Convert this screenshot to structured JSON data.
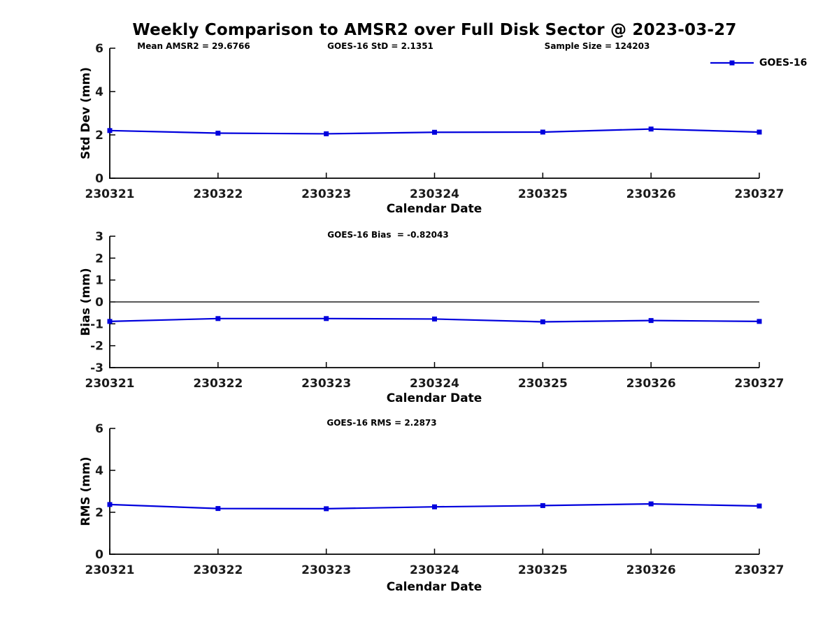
{
  "title": "Weekly Comparison to AMSR2 over Full Disk Sector @ 2023-03-27",
  "colors": {
    "line": "#0000dd",
    "marker": "#0000dd",
    "axis": "#000000",
    "zero_line": "#222222",
    "text": "#1a1a1a"
  },
  "chart_data": [
    {
      "type": "line",
      "title": "",
      "ylabel": "Std Dev (mm)",
      "xlabel": "Calendar Date",
      "ylim": [
        0,
        6
      ],
      "yticks": [
        0,
        2,
        4,
        6
      ],
      "categories": [
        "230321",
        "230322",
        "230323",
        "230324",
        "230325",
        "230326",
        "230327"
      ],
      "series": [
        {
          "name": "GOES-16",
          "values": [
            2.2,
            2.08,
            2.05,
            2.12,
            2.13,
            2.27,
            2.13
          ]
        }
      ],
      "annotations": [
        {
          "text": "Mean AMSR2 = 29.6766"
        },
        {
          "text": "GOES-16 StD = 2.1351"
        },
        {
          "text": "Sample Size = 124203"
        }
      ],
      "legend": {
        "label": "GOES-16",
        "position": "top-right"
      },
      "grid": false,
      "zero_line": false
    },
    {
      "type": "line",
      "title": "",
      "ylabel": "Bias (mm)",
      "xlabel": "Calendar Date",
      "ylim": [
        -3,
        3
      ],
      "yticks": [
        -3,
        -2,
        -1,
        0,
        1,
        2,
        3
      ],
      "categories": [
        "230321",
        "230322",
        "230323",
        "230324",
        "230325",
        "230326",
        "230327"
      ],
      "series": [
        {
          "name": "GOES-16",
          "values": [
            -0.89,
            -0.76,
            -0.76,
            -0.78,
            -0.91,
            -0.85,
            -0.89
          ]
        }
      ],
      "annotations": [
        {
          "text": "GOES-16 Bias  = -0.82043"
        }
      ],
      "grid": false,
      "zero_line": true
    },
    {
      "type": "line",
      "title": "",
      "ylabel": "RMS (mm)",
      "xlabel": "Calendar Date",
      "ylim": [
        0,
        6
      ],
      "yticks": [
        0,
        2,
        4,
        6
      ],
      "categories": [
        "230321",
        "230322",
        "230323",
        "230324",
        "230325",
        "230326",
        "230327"
      ],
      "series": [
        {
          "name": "GOES-16",
          "values": [
            2.37,
            2.18,
            2.17,
            2.26,
            2.32,
            2.4,
            2.3
          ]
        }
      ],
      "annotations": [
        {
          "text": "GOES-16 RMS = 2.2873"
        }
      ],
      "grid": false,
      "zero_line": false
    }
  ]
}
